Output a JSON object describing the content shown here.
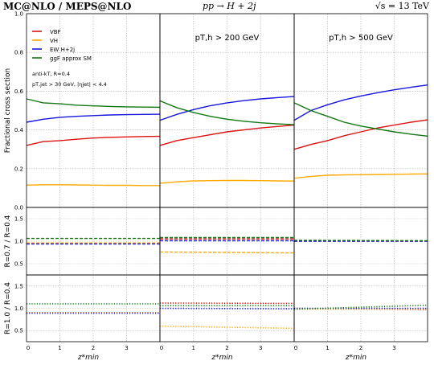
{
  "header": {
    "generator": "MC@NLO / MEPS@NLO",
    "process": "pp → H + 2j",
    "energy": "√s = 13 TeV"
  },
  "colors": {
    "VBF": "#dd1111",
    "VH": "#ffaa00",
    "EW H+2j": "#1515dd",
    "ggF approx SM": "#117711",
    "grid": "#b0b0b0"
  },
  "chart_data": [
    {
      "type": "line",
      "panel": "main",
      "ylabel": "Fractional cross section",
      "ylim": [
        0,
        1.0
      ],
      "yticks": [
        "0.0",
        "0.2",
        "0.4",
        "0.6",
        "0.8",
        "1.0"
      ],
      "xlim": [
        0,
        4
      ],
      "xticks": [
        "0",
        "1",
        "2",
        "3"
      ],
      "xlabel": "z*min",
      "grid": true,
      "legend_position": "top-left",
      "legend": [
        "VBF",
        "VH",
        "EW H+2j",
        "ggF approx SM"
      ],
      "annotations": [
        "anti-kT, R=0.4",
        "pT,jet > 30 GeV, |ηjet| < 4.4"
      ],
      "subplots": [
        {
          "label": "",
          "x": [
            0,
            0.5,
            1,
            1.5,
            2,
            2.5,
            3,
            3.5,
            4
          ],
          "series": [
            {
              "name": "VBF",
              "values": [
                0.32,
                0.34,
                0.345,
                0.352,
                0.358,
                0.362,
                0.364,
                0.366,
                0.367
              ]
            },
            {
              "name": "VH",
              "values": [
                0.115,
                0.117,
                0.117,
                0.116,
                0.115,
                0.114,
                0.114,
                0.113,
                0.113
              ]
            },
            {
              "name": "EW H+2j",
              "values": [
                0.44,
                0.455,
                0.465,
                0.47,
                0.474,
                0.477,
                0.479,
                0.48,
                0.481
              ]
            },
            {
              "name": "ggF approx SM",
              "values": [
                0.56,
                0.54,
                0.535,
                0.528,
                0.524,
                0.521,
                0.519,
                0.518,
                0.517
              ]
            }
          ]
        },
        {
          "label": "pT,h > 200 GeV",
          "x": [
            0,
            0.5,
            1,
            1.5,
            2,
            2.5,
            3,
            3.5,
            4
          ],
          "series": [
            {
              "name": "VBF",
              "values": [
                0.32,
                0.345,
                0.36,
                0.375,
                0.39,
                0.4,
                0.41,
                0.418,
                0.425
              ]
            },
            {
              "name": "VH",
              "values": [
                0.125,
                0.132,
                0.137,
                0.138,
                0.139,
                0.139,
                0.138,
                0.137,
                0.136
              ]
            },
            {
              "name": "EW H+2j",
              "values": [
                0.45,
                0.48,
                0.505,
                0.525,
                0.54,
                0.551,
                0.56,
                0.567,
                0.572
              ]
            },
            {
              "name": "ggF approx SM",
              "values": [
                0.55,
                0.515,
                0.49,
                0.47,
                0.455,
                0.445,
                0.437,
                0.431,
                0.427
              ]
            }
          ]
        },
        {
          "label": "pT,h > 500 GeV",
          "x": [
            0,
            0.5,
            1,
            1.5,
            2,
            2.5,
            3,
            3.5,
            4
          ],
          "series": [
            {
              "name": "VBF",
              "values": [
                0.3,
                0.325,
                0.345,
                0.37,
                0.39,
                0.41,
                0.425,
                0.44,
                0.452
              ]
            },
            {
              "name": "VH",
              "values": [
                0.15,
                0.16,
                0.166,
                0.168,
                0.169,
                0.17,
                0.171,
                0.172,
                0.173
              ]
            },
            {
              "name": "EW H+2j",
              "values": [
                0.45,
                0.5,
                0.53,
                0.555,
                0.575,
                0.592,
                0.607,
                0.62,
                0.632
              ]
            },
            {
              "name": "ggF approx SM",
              "values": [
                0.54,
                0.5,
                0.47,
                0.44,
                0.42,
                0.405,
                0.39,
                0.378,
                0.368
              ]
            }
          ]
        }
      ]
    },
    {
      "type": "line",
      "panel": "ratio-R07",
      "ylabel": "R=0.7 / R=0.4",
      "ylim": [
        0.25,
        1.75
      ],
      "yticks": [
        "0.5",
        "1.0",
        "1.5"
      ],
      "xlim": [
        0,
        4
      ],
      "xticks": [
        "0",
        "1",
        "2",
        "3"
      ],
      "grid": true,
      "line_style": "dashed",
      "subplots": [
        {
          "x": [
            0,
            4
          ],
          "series": [
            {
              "name": "VBF",
              "values": [
                0.96,
                0.96
              ]
            },
            {
              "name": "VH",
              "values": [
                0.96,
                0.96
              ]
            },
            {
              "name": "EW H+2j",
              "values": [
                0.94,
                0.94
              ]
            },
            {
              "name": "ggF approx SM",
              "values": [
                1.06,
                1.06
              ]
            }
          ]
        },
        {
          "x": [
            0,
            4
          ],
          "series": [
            {
              "name": "VBF",
              "values": [
                1.05,
                1.05
              ]
            },
            {
              "name": "VH",
              "values": [
                0.76,
                0.74
              ]
            },
            {
              "name": "EW H+2j",
              "values": [
                1.01,
                1.01
              ]
            },
            {
              "name": "ggF approx SM",
              "values": [
                1.08,
                1.08
              ]
            }
          ]
        },
        {
          "x": [
            0,
            4
          ],
          "series": [
            {
              "name": "VBF",
              "values": [
                1.01,
                1.0
              ]
            },
            {
              "name": "VH",
              "values": [
                1.0,
                1.0
              ]
            },
            {
              "name": "EW H+2j",
              "values": [
                1.0,
                1.0
              ]
            },
            {
              "name": "ggF approx SM",
              "values": [
                1.02,
                1.01
              ]
            }
          ]
        }
      ]
    },
    {
      "type": "line",
      "panel": "ratio-R10",
      "ylabel": "R=1.0 / R=0.4",
      "ylim": [
        0.25,
        1.75
      ],
      "yticks": [
        "0.5",
        "1.0",
        "1.5"
      ],
      "xlim": [
        0,
        4
      ],
      "xticks": [
        "0",
        "1",
        "2",
        "3"
      ],
      "xlabel": "z*min",
      "grid": true,
      "line_style": "dotted",
      "subplots": [
        {
          "x": [
            0,
            4
          ],
          "series": [
            {
              "name": "VBF",
              "values": [
                0.9,
                0.9
              ]
            },
            {
              "name": "VH",
              "values": [
                0.9,
                0.9
              ]
            },
            {
              "name": "EW H+2j",
              "values": [
                0.89,
                0.89
              ]
            },
            {
              "name": "ggF approx SM",
              "values": [
                1.1,
                1.1
              ]
            }
          ]
        },
        {
          "x": [
            0,
            4
          ],
          "series": [
            {
              "name": "VBF",
              "values": [
                1.12,
                1.11
              ]
            },
            {
              "name": "VH",
              "values": [
                0.6,
                0.55
              ]
            },
            {
              "name": "EW H+2j",
              "values": [
                1.0,
                0.99
              ]
            },
            {
              "name": "ggF approx SM",
              "values": [
                1.06,
                1.06
              ]
            }
          ]
        },
        {
          "x": [
            0,
            4
          ],
          "series": [
            {
              "name": "VBF",
              "values": [
                1.0,
                0.97
              ]
            },
            {
              "name": "VH",
              "values": [
                0.98,
                0.98
              ]
            },
            {
              "name": "EW H+2j",
              "values": [
                1.0,
                1.0
              ]
            },
            {
              "name": "ggF approx SM",
              "values": [
                0.98,
                1.07
              ]
            }
          ]
        }
      ]
    }
  ]
}
